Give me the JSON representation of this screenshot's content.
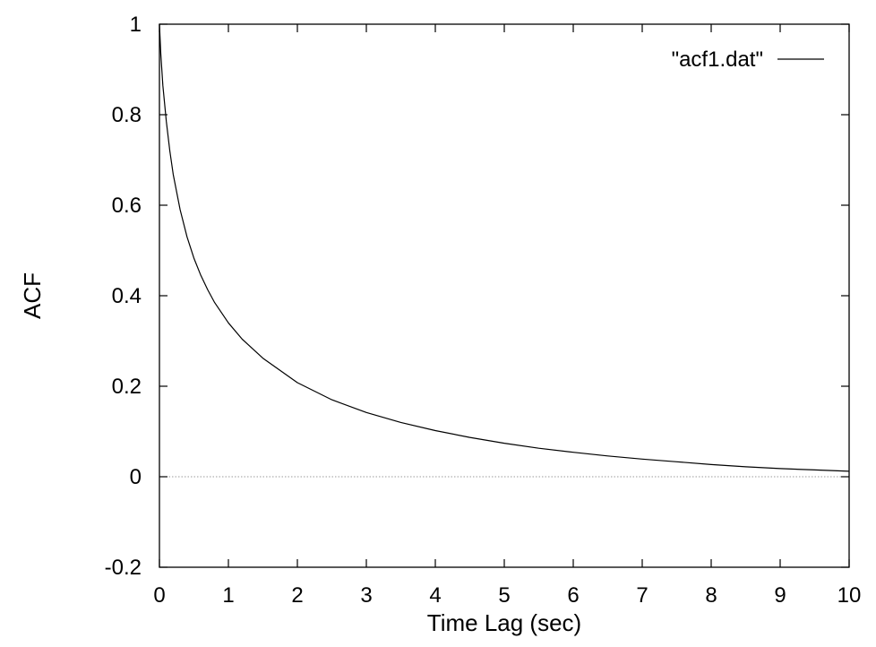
{
  "chart_data": {
    "type": "line",
    "title": "",
    "xlabel": "Time Lag (sec)",
    "ylabel": "ACF",
    "xlim": [
      0,
      10
    ],
    "ylim": [
      -0.2,
      1
    ],
    "x_ticks": [
      0,
      1,
      2,
      3,
      4,
      5,
      6,
      7,
      8,
      9,
      10
    ],
    "x_tick_labels": [
      "0",
      "1",
      "2",
      "3",
      "4",
      "5",
      "6",
      "7",
      "8",
      "9",
      "10"
    ],
    "y_ticks": [
      -0.2,
      0,
      0.2,
      0.4,
      0.6,
      0.8,
      1
    ],
    "y_tick_labels": [
      "-0.2",
      "0",
      "0.2",
      "0.4",
      "0.6",
      "0.8",
      "1"
    ],
    "zero_line": true,
    "grid": false,
    "legend_position": "top-right",
    "series": [
      {
        "name": "\"acf1.dat\"",
        "color": "#000000",
        "x": [
          0,
          0.02,
          0.05,
          0.1,
          0.15,
          0.2,
          0.3,
          0.4,
          0.5,
          0.6,
          0.7,
          0.8,
          1.0,
          1.2,
          1.5,
          2.0,
          2.5,
          3.0,
          3.5,
          4.0,
          4.5,
          5.0,
          5.5,
          6.0,
          6.5,
          7.0,
          7.5,
          8.0,
          8.5,
          9.0,
          9.5,
          10.0
        ],
        "y": [
          1.0,
          0.935,
          0.865,
          0.785,
          0.72,
          0.668,
          0.59,
          0.53,
          0.483,
          0.445,
          0.413,
          0.385,
          0.34,
          0.304,
          0.262,
          0.208,
          0.17,
          0.142,
          0.12,
          0.102,
          0.087,
          0.074,
          0.063,
          0.054,
          0.046,
          0.039,
          0.033,
          0.027,
          0.022,
          0.018,
          0.015,
          0.012
        ]
      }
    ]
  }
}
